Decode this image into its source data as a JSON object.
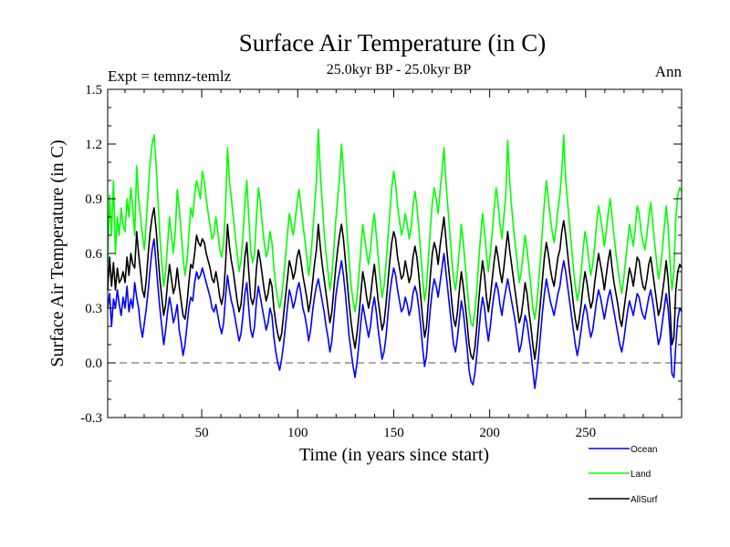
{
  "chart_data": {
    "type": "line",
    "title": "Surface Air Temperature (in C)",
    "subtitle": "25.0kyr BP - 25.0kyr BP",
    "expt_label": "Expt = temnz-temlz",
    "season_label": "Ann",
    "xlabel": "Time (in years since start)",
    "ylabel": "Surface Air Temperature (in C)",
    "xlim": [
      1,
      300
    ],
    "ylim": [
      -0.3,
      1.5
    ],
    "x_ticks": [
      "50",
      "100",
      "150",
      "200",
      "250"
    ],
    "x_tick_values": [
      50,
      100,
      150,
      200,
      250
    ],
    "y_ticks": [
      "-0.3",
      "0.0",
      "0.3",
      "0.6",
      "0.9",
      "1.2",
      "1.5"
    ],
    "y_tick_values": [
      -0.3,
      0.0,
      0.3,
      0.6,
      0.9,
      1.2,
      1.5
    ],
    "reference_line": 0.0,
    "series": [
      {
        "name": "Ocean",
        "color": "#0000ff",
        "values": [
          0.3,
          0.38,
          0.2,
          0.35,
          0.3,
          0.4,
          0.32,
          0.26,
          0.36,
          0.3,
          0.42,
          0.28,
          0.35,
          0.3,
          0.44,
          0.36,
          0.3,
          0.2,
          0.14,
          0.22,
          0.3,
          0.4,
          0.52,
          0.62,
          0.68,
          0.55,
          0.42,
          0.3,
          0.2,
          0.1,
          0.18,
          0.28,
          0.36,
          0.3,
          0.22,
          0.26,
          0.32,
          0.18,
          0.12,
          0.04,
          0.1,
          0.2,
          0.3,
          0.36,
          0.34,
          0.44,
          0.5,
          0.46,
          0.48,
          0.52,
          0.48,
          0.44,
          0.4,
          0.36,
          0.3,
          0.28,
          0.32,
          0.26,
          0.2,
          0.16,
          0.22,
          0.36,
          0.48,
          0.4,
          0.34,
          0.3,
          0.24,
          0.18,
          0.12,
          0.16,
          0.26,
          0.38,
          0.44,
          0.3,
          0.18,
          0.14,
          0.2,
          0.34,
          0.42,
          0.36,
          0.3,
          0.24,
          0.18,
          0.22,
          0.3,
          0.26,
          0.14,
          0.06,
          0.0,
          -0.04,
          0.02,
          0.1,
          0.2,
          0.3,
          0.4,
          0.36,
          0.3,
          0.34,
          0.4,
          0.44,
          0.38,
          0.3,
          0.26,
          0.2,
          0.12,
          0.18,
          0.28,
          0.36,
          0.42,
          0.46,
          0.4,
          0.34,
          0.28,
          0.2,
          0.14,
          0.06,
          0.12,
          0.24,
          0.36,
          0.44,
          0.5,
          0.56,
          0.48,
          0.38,
          0.26,
          0.14,
          0.06,
          -0.02,
          -0.08,
          0.0,
          0.1,
          0.22,
          0.32,
          0.26,
          0.2,
          0.14,
          0.2,
          0.3,
          0.36,
          0.28,
          0.18,
          0.1,
          0.02,
          0.06,
          0.14,
          0.26,
          0.38,
          0.46,
          0.52,
          0.48,
          0.4,
          0.34,
          0.28,
          0.3,
          0.36,
          0.32,
          0.26,
          0.3,
          0.38,
          0.42,
          0.38,
          0.3,
          0.2,
          0.08,
          -0.02,
          0.04,
          0.18,
          0.3,
          0.4,
          0.46,
          0.42,
          0.36,
          0.44,
          0.52,
          0.6,
          0.5,
          0.4,
          0.3,
          0.2,
          0.1,
          0.06,
          0.14,
          0.24,
          0.34,
          0.28,
          0.18,
          0.08,
          -0.04,
          -0.1,
          -0.12,
          -0.06,
          0.04,
          0.16,
          0.28,
          0.36,
          0.3,
          0.2,
          0.12,
          0.2,
          0.3,
          0.38,
          0.44,
          0.4,
          0.32,
          0.26,
          0.34,
          0.4,
          0.46,
          0.4,
          0.34,
          0.28,
          0.22,
          0.14,
          0.06,
          0.1,
          0.18,
          0.26,
          0.22,
          0.14,
          0.06,
          -0.04,
          -0.14,
          -0.06,
          0.04,
          0.16,
          0.28,
          0.38,
          0.46,
          0.4,
          0.34,
          0.3,
          0.26,
          0.32,
          0.38,
          0.42,
          0.5,
          0.56,
          0.5,
          0.42,
          0.34,
          0.26,
          0.18,
          0.1,
          0.04,
          0.1,
          0.18,
          0.26,
          0.32,
          0.28,
          0.2,
          0.14,
          0.18,
          0.26,
          0.34,
          0.4,
          0.36,
          0.3,
          0.24,
          0.3,
          0.36,
          0.4,
          0.34,
          0.28,
          0.22,
          0.16,
          0.1,
          0.06,
          0.12,
          0.2,
          0.28,
          0.34,
          0.3,
          0.26,
          0.32,
          0.38,
          0.36,
          0.3,
          0.26,
          0.24,
          0.3,
          0.36,
          0.4,
          0.34,
          0.26,
          0.18,
          0.1,
          0.14,
          0.22,
          0.3,
          0.38,
          0.3,
          0.16,
          -0.06,
          -0.08,
          0.1,
          0.24,
          0.3,
          0.28
        ]
      },
      {
        "name": "Land",
        "color": "#00ff00",
        "values": [
          0.55,
          0.92,
          0.7,
          1.0,
          0.6,
          0.8,
          0.7,
          0.85,
          0.75,
          0.72,
          0.9,
          0.8,
          0.96,
          0.85,
          0.7,
          1.08,
          0.9,
          0.8,
          0.7,
          0.62,
          0.78,
          0.95,
          1.1,
          1.2,
          1.25,
          1.1,
          0.9,
          0.7,
          0.55,
          0.42,
          0.5,
          0.65,
          0.8,
          0.7,
          0.6,
          0.72,
          0.95,
          0.85,
          0.72,
          0.58,
          0.48,
          0.55,
          0.7,
          0.85,
          0.8,
          0.92,
          1.0,
          0.95,
          0.9,
          1.05,
          1.0,
          0.9,
          0.82,
          0.75,
          0.68,
          0.7,
          0.8,
          0.72,
          0.62,
          0.58,
          0.66,
          0.85,
          1.18,
          1.0,
          0.9,
          0.8,
          0.7,
          0.6,
          0.5,
          0.56,
          0.7,
          0.88,
          1.0,
          0.8,
          0.62,
          0.55,
          0.6,
          0.8,
          0.96,
          0.88,
          0.76,
          0.66,
          0.58,
          0.62,
          0.72,
          0.66,
          0.52,
          0.42,
          0.35,
          0.3,
          0.36,
          0.46,
          0.58,
          0.7,
          0.82,
          0.76,
          0.7,
          0.78,
          0.88,
          0.95,
          0.86,
          0.76,
          0.68,
          0.58,
          0.48,
          0.56,
          0.7,
          0.85,
          1.0,
          1.28,
          1.05,
          0.88,
          0.72,
          0.6,
          0.5,
          0.4,
          0.48,
          0.62,
          0.78,
          0.9,
          1.02,
          1.2,
          1.05,
          0.88,
          0.7,
          0.55,
          0.42,
          0.34,
          0.28,
          0.36,
          0.48,
          0.62,
          0.76,
          0.68,
          0.6,
          0.54,
          0.62,
          0.74,
          0.82,
          0.7,
          0.58,
          0.46,
          0.36,
          0.42,
          0.54,
          0.68,
          0.82,
          0.96,
          1.05,
          0.98,
          0.86,
          0.78,
          0.7,
          0.74,
          0.82,
          0.76,
          0.68,
          0.74,
          0.86,
          0.94,
          0.86,
          0.74,
          0.6,
          0.46,
          0.34,
          0.42,
          0.58,
          0.74,
          0.88,
          0.96,
          0.9,
          0.82,
          0.94,
          1.05,
          1.18,
          1.0,
          0.86,
          0.72,
          0.58,
          0.46,
          0.4,
          0.5,
          0.62,
          0.76,
          0.66,
          0.54,
          0.42,
          0.3,
          0.22,
          0.2,
          0.28,
          0.4,
          0.56,
          0.7,
          0.82,
          0.72,
          0.6,
          0.5,
          0.6,
          0.72,
          0.84,
          0.96,
          0.88,
          0.76,
          0.68,
          0.8,
          0.92,
          1.22,
          1.0,
          0.86,
          0.74,
          0.64,
          0.54,
          0.44,
          0.5,
          0.6,
          0.7,
          0.62,
          0.52,
          0.42,
          0.3,
          0.24,
          0.32,
          0.44,
          0.58,
          0.74,
          0.88,
          1.0,
          0.9,
          0.8,
          0.72,
          0.66,
          0.74,
          0.84,
          0.92,
          1.05,
          1.25,
          1.0,
          0.88,
          0.76,
          0.64,
          0.52,
          0.42,
          0.34,
          0.4,
          0.5,
          0.62,
          0.72,
          0.66,
          0.56,
          0.48,
          0.54,
          0.64,
          0.76,
          0.86,
          0.8,
          0.72,
          0.64,
          0.72,
          0.82,
          0.9,
          0.8,
          0.7,
          0.6,
          0.52,
          0.44,
          0.38,
          0.46,
          0.56,
          0.66,
          0.76,
          0.7,
          0.64,
          0.74,
          0.86,
          0.82,
          0.72,
          0.66,
          0.62,
          0.7,
          0.8,
          0.88,
          0.78,
          0.66,
          0.56,
          0.46,
          0.52,
          0.62,
          0.74,
          0.86,
          0.75,
          0.55,
          0.4,
          0.5,
          0.8,
          0.92,
          0.96,
          0.94
        ]
      },
      {
        "name": "AllSurf",
        "color": "#000000",
        "values": [
          0.4,
          0.58,
          0.42,
          0.55,
          0.4,
          0.52,
          0.44,
          0.46,
          0.5,
          0.44,
          0.58,
          0.48,
          0.6,
          0.54,
          0.52,
          0.72,
          0.6,
          0.5,
          0.4,
          0.36,
          0.46,
          0.6,
          0.72,
          0.8,
          0.85,
          0.74,
          0.6,
          0.46,
          0.36,
          0.26,
          0.32,
          0.44,
          0.54,
          0.46,
          0.38,
          0.42,
          0.52,
          0.42,
          0.34,
          0.26,
          0.24,
          0.32,
          0.44,
          0.54,
          0.52,
          0.6,
          0.7,
          0.66,
          0.64,
          0.68,
          0.66,
          0.6,
          0.56,
          0.52,
          0.46,
          0.44,
          0.5,
          0.44,
          0.36,
          0.32,
          0.38,
          0.54,
          0.76,
          0.64,
          0.56,
          0.5,
          0.42,
          0.34,
          0.28,
          0.32,
          0.44,
          0.58,
          0.66,
          0.5,
          0.36,
          0.32,
          0.36,
          0.52,
          0.62,
          0.56,
          0.48,
          0.4,
          0.34,
          0.38,
          0.46,
          0.42,
          0.3,
          0.22,
          0.16,
          0.12,
          0.16,
          0.26,
          0.36,
          0.46,
          0.56,
          0.52,
          0.46,
          0.5,
          0.58,
          0.62,
          0.56,
          0.48,
          0.42,
          0.36,
          0.28,
          0.34,
          0.44,
          0.54,
          0.62,
          0.76,
          0.64,
          0.54,
          0.46,
          0.38,
          0.3,
          0.22,
          0.28,
          0.4,
          0.52,
          0.62,
          0.7,
          0.76,
          0.68,
          0.56,
          0.44,
          0.32,
          0.22,
          0.14,
          0.08,
          0.16,
          0.26,
          0.38,
          0.5,
          0.44,
          0.36,
          0.3,
          0.36,
          0.46,
          0.54,
          0.44,
          0.34,
          0.26,
          0.18,
          0.22,
          0.32,
          0.44,
          0.56,
          0.66,
          0.72,
          0.68,
          0.58,
          0.52,
          0.46,
          0.48,
          0.56,
          0.5,
          0.44,
          0.48,
          0.58,
          0.64,
          0.58,
          0.48,
          0.36,
          0.24,
          0.14,
          0.2,
          0.34,
          0.48,
          0.6,
          0.66,
          0.62,
          0.54,
          0.64,
          0.72,
          0.8,
          0.68,
          0.56,
          0.46,
          0.34,
          0.24,
          0.2,
          0.28,
          0.4,
          0.5,
          0.42,
          0.32,
          0.22,
          0.1,
          0.04,
          0.02,
          0.08,
          0.2,
          0.34,
          0.46,
          0.56,
          0.48,
          0.36,
          0.28,
          0.36,
          0.46,
          0.56,
          0.64,
          0.58,
          0.5,
          0.44,
          0.52,
          0.62,
          0.72,
          0.62,
          0.54,
          0.46,
          0.38,
          0.3,
          0.22,
          0.26,
          0.34,
          0.44,
          0.38,
          0.28,
          0.2,
          0.1,
          0.02,
          0.1,
          0.22,
          0.34,
          0.46,
          0.58,
          0.66,
          0.6,
          0.52,
          0.46,
          0.42,
          0.5,
          0.58,
          0.62,
          0.72,
          0.78,
          0.7,
          0.6,
          0.5,
          0.42,
          0.32,
          0.24,
          0.18,
          0.24,
          0.32,
          0.42,
          0.5,
          0.44,
          0.36,
          0.3,
          0.34,
          0.44,
          0.52,
          0.6,
          0.54,
          0.48,
          0.4,
          0.48,
          0.56,
          0.62,
          0.52,
          0.44,
          0.38,
          0.32,
          0.24,
          0.2,
          0.28,
          0.36,
          0.44,
          0.52,
          0.48,
          0.42,
          0.5,
          0.58,
          0.56,
          0.48,
          0.42,
          0.4,
          0.46,
          0.54,
          0.58,
          0.5,
          0.42,
          0.34,
          0.26,
          0.3,
          0.38,
          0.46,
          0.56,
          0.46,
          0.3,
          0.1,
          0.14,
          0.4,
          0.5,
          0.54,
          0.52
        ]
      }
    ],
    "legend_position": "bottom-right"
  }
}
